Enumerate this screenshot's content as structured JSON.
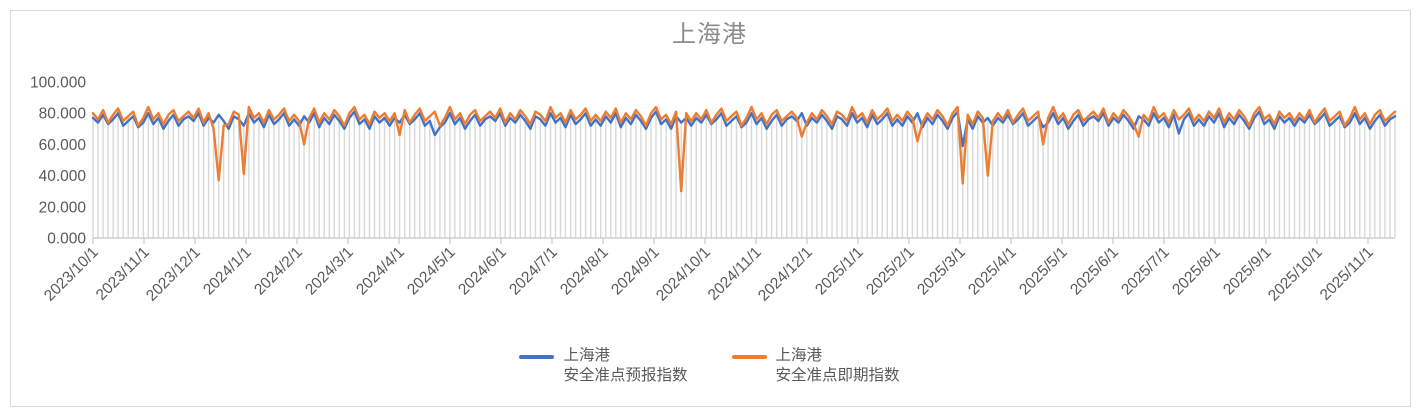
{
  "chart_data": {
    "type": "line",
    "title": "上海港",
    "ylim": [
      0,
      100
    ],
    "y_ticks": [
      {
        "value": 100,
        "label": "100.000"
      },
      {
        "value": 80,
        "label": "80.000"
      },
      {
        "value": 60,
        "label": "60.000"
      },
      {
        "value": 40,
        "label": "40.000"
      },
      {
        "value": 20,
        "label": "20.000"
      },
      {
        "value": 0,
        "label": "0.000"
      }
    ],
    "x_tick_labels": [
      "2023/10/1",
      "2023/11/1",
      "2023/12/1",
      "2024/1/1",
      "2024/2/1",
      "2024/3/1",
      "2024/4/1",
      "2024/5/1",
      "2024/6/1",
      "2024/7/1",
      "2024/8/1",
      "2024/9/1",
      "2024/10/1",
      "2024/11/1",
      "2024/12/1",
      "2025/1/1",
      "2025/2/1",
      "2025/3/1",
      "2025/4/1",
      "2025/5/1",
      "2025/6/1",
      "2025/7/1",
      "2025/8/1",
      "2025/9/1",
      "2025/10/1",
      "2025/11/1"
    ],
    "x_range": [
      "2023/10/1",
      "2025/11/15"
    ],
    "grid": false,
    "drop_lines": true,
    "legend_position": "bottom",
    "colors": {
      "drop_line": "#D8D8D8",
      "axis": "#C8C8C8",
      "text": "#595959",
      "title": "#8C8C8C"
    },
    "series": [
      {
        "id": "forecast",
        "name": "上海港安全准点预报指数",
        "color": "#4472C4",
        "values": [
          77,
          74,
          79,
          73,
          76,
          80,
          72,
          75,
          78,
          71,
          74,
          80,
          73,
          77,
          70,
          75,
          79,
          72,
          76,
          78,
          75,
          80,
          72,
          77,
          74,
          79,
          75,
          70,
          78,
          76,
          72,
          80,
          74,
          77,
          71,
          79,
          73,
          76,
          80,
          72,
          76,
          72,
          78,
          74,
          80,
          71,
          77,
          73,
          79,
          75,
          70,
          77,
          81,
          73,
          76,
          70,
          78,
          74,
          77,
          72,
          77,
          74,
          79,
          73,
          76,
          80,
          72,
          75,
          66,
          71,
          74,
          80,
          73,
          77,
          70,
          75,
          79,
          72,
          76,
          78,
          75,
          80,
          72,
          77,
          74,
          79,
          75,
          70,
          78,
          76,
          72,
          80,
          74,
          77,
          71,
          79,
          73,
          76,
          80,
          72,
          76,
          72,
          78,
          74,
          80,
          71,
          77,
          73,
          79,
          75,
          70,
          77,
          81,
          73,
          76,
          70,
          78,
          74,
          77,
          72,
          77,
          74,
          79,
          73,
          76,
          80,
          72,
          75,
          78,
          71,
          74,
          80,
          73,
          77,
          70,
          75,
          79,
          72,
          76,
          78,
          75,
          80,
          72,
          77,
          74,
          79,
          75,
          70,
          78,
          76,
          72,
          80,
          74,
          77,
          71,
          79,
          73,
          76,
          80,
          72,
          76,
          72,
          78,
          74,
          80,
          71,
          77,
          73,
          79,
          75,
          70,
          77,
          81,
          59,
          76,
          70,
          78,
          74,
          77,
          72,
          77,
          74,
          79,
          73,
          76,
          80,
          72,
          75,
          78,
          71,
          74,
          80,
          73,
          77,
          70,
          75,
          79,
          72,
          76,
          78,
          75,
          80,
          72,
          77,
          74,
          79,
          75,
          70,
          78,
          76,
          72,
          80,
          74,
          77,
          71,
          79,
          67,
          76,
          80,
          72,
          76,
          72,
          78,
          74,
          80,
          71,
          77,
          73,
          79,
          75,
          70,
          77,
          81,
          73,
          76,
          70,
          78,
          74,
          77,
          72,
          77,
          74,
          79,
          73,
          76,
          80,
          72,
          75,
          78,
          71,
          74,
          80,
          73,
          77,
          70,
          75,
          79,
          72,
          76,
          78
        ]
      },
      {
        "id": "spot",
        "name": "上海港安全准点即期指数",
        "color": "#ED7D31",
        "values": [
          80,
          76,
          82,
          74,
          79,
          83,
          75,
          78,
          81,
          72,
          77,
          84,
          76,
          80,
          73,
          79,
          82,
          75,
          78,
          81,
          77,
          83,
          74,
          80,
          70,
          37,
          72,
          73,
          81,
          79,
          41,
          84,
          77,
          80,
          74,
          82,
          76,
          79,
          83,
          75,
          79,
          75,
          60,
          77,
          83,
          74,
          80,
          76,
          82,
          78,
          72,
          80,
          84,
          76,
          79,
          73,
          81,
          77,
          80,
          75,
          80,
          66,
          82,
          74,
          79,
          83,
          75,
          78,
          81,
          72,
          77,
          84,
          76,
          80,
          73,
          79,
          82,
          75,
          78,
          81,
          77,
          83,
          74,
          80,
          76,
          82,
          78,
          73,
          81,
          79,
          75,
          84,
          77,
          80,
          74,
          82,
          76,
          79,
          83,
          75,
          79,
          75,
          81,
          77,
          83,
          74,
          80,
          76,
          82,
          78,
          72,
          80,
          84,
          76,
          79,
          73,
          81,
          30,
          80,
          75,
          80,
          76,
          82,
          74,
          79,
          83,
          75,
          78,
          81,
          72,
          77,
          84,
          76,
          80,
          73,
          79,
          82,
          75,
          78,
          81,
          77,
          65,
          74,
          80,
          76,
          82,
          78,
          73,
          81,
          79,
          75,
          84,
          77,
          80,
          74,
          82,
          76,
          79,
          83,
          75,
          79,
          75,
          81,
          77,
          62,
          74,
          80,
          76,
          82,
          78,
          72,
          80,
          84,
          35,
          79,
          73,
          81,
          77,
          40,
          75,
          80,
          76,
          82,
          74,
          79,
          83,
          75,
          78,
          81,
          60,
          77,
          84,
          76,
          80,
          73,
          79,
          82,
          75,
          78,
          81,
          77,
          83,
          74,
          80,
          76,
          82,
          78,
          73,
          65,
          79,
          75,
          84,
          77,
          80,
          74,
          82,
          76,
          79,
          83,
          75,
          79,
          75,
          81,
          77,
          83,
          74,
          80,
          76,
          82,
          78,
          72,
          80,
          84,
          76,
          79,
          73,
          81,
          77,
          80,
          75,
          80,
          76,
          82,
          74,
          79,
          83,
          75,
          78,
          81,
          72,
          77,
          84,
          76,
          80,
          73,
          79,
          82,
          75,
          78,
          81
        ]
      }
    ]
  },
  "legend": {
    "items": [
      {
        "line1": "上海港",
        "line2": "安全准点预报指数",
        "color": "#4472C4"
      },
      {
        "line1": "上海港",
        "line2": "安全准点即期指数",
        "color": "#ED7D31"
      }
    ]
  }
}
